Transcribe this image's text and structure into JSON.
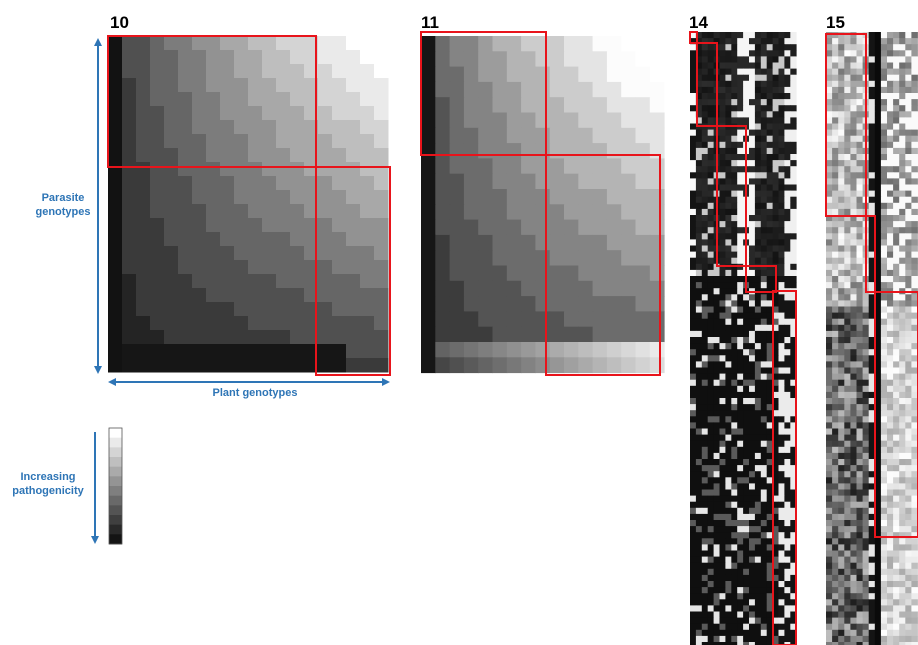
{
  "panels": {
    "p10": {
      "label": "10"
    },
    "p11": {
      "label": "11"
    },
    "p14": {
      "label": "14"
    },
    "p15": {
      "label": "15"
    }
  },
  "axes": {
    "y_label_line1": "Parasite",
    "y_label_line2": "genotypes",
    "x_label": "Plant genotypes"
  },
  "legend": {
    "label_line1": "Increasing",
    "label_line2": "pathogenicity",
    "levels": 12
  },
  "colors": {
    "axis_blue": "#2E75B6",
    "highlight_red": "#E8141B"
  }
}
